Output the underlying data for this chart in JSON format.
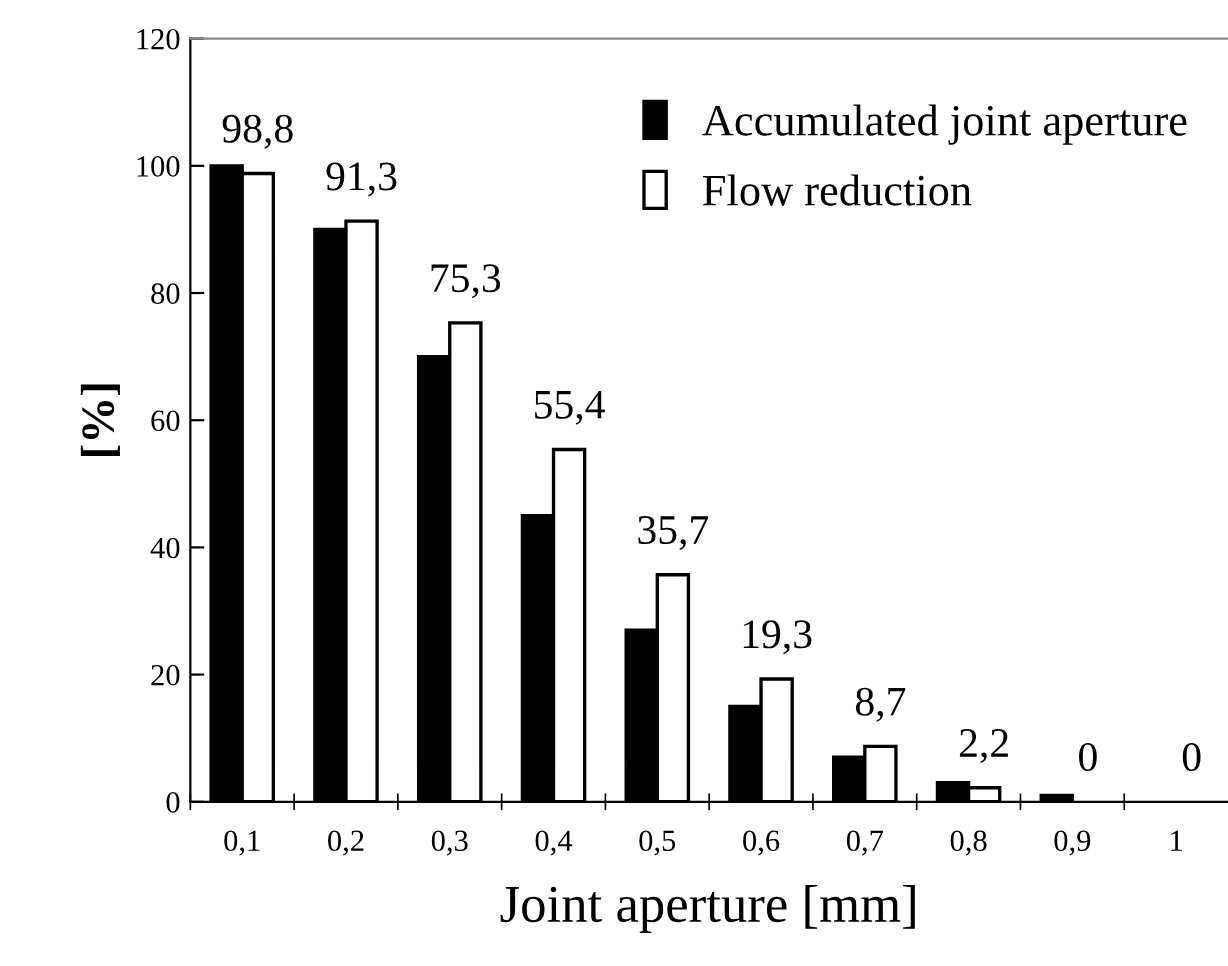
{
  "chart_data": {
    "type": "bar",
    "xlabel": "Joint aperture [mm]",
    "ylabel": "[%]",
    "categories": [
      "0,1",
      "0,2",
      "0,3",
      "0,4",
      "0,5",
      "0,6",
      "0,7",
      "0,8",
      "0,9",
      "1"
    ],
    "series": [
      {
        "name": "Accumulated joint aperture",
        "color": "#000000",
        "values": [
          100,
          90,
          70,
          45,
          27,
          15,
          7,
          3,
          1,
          0
        ]
      },
      {
        "name": "Flow reduction",
        "color": "#ffffff",
        "values": [
          98.8,
          91.3,
          75.3,
          55.4,
          35.7,
          19.3,
          8.7,
          2.2,
          0,
          0
        ],
        "value_labels": [
          "98,8",
          "91,3",
          "75,3",
          "55,4",
          "35,7",
          "19,3",
          "8,7",
          "2,2",
          "0",
          "0"
        ]
      }
    ],
    "ylim": [
      0,
      120
    ],
    "yticks": [
      0,
      20,
      40,
      60,
      80,
      100,
      120
    ],
    "grid": false,
    "legend": "top right"
  }
}
